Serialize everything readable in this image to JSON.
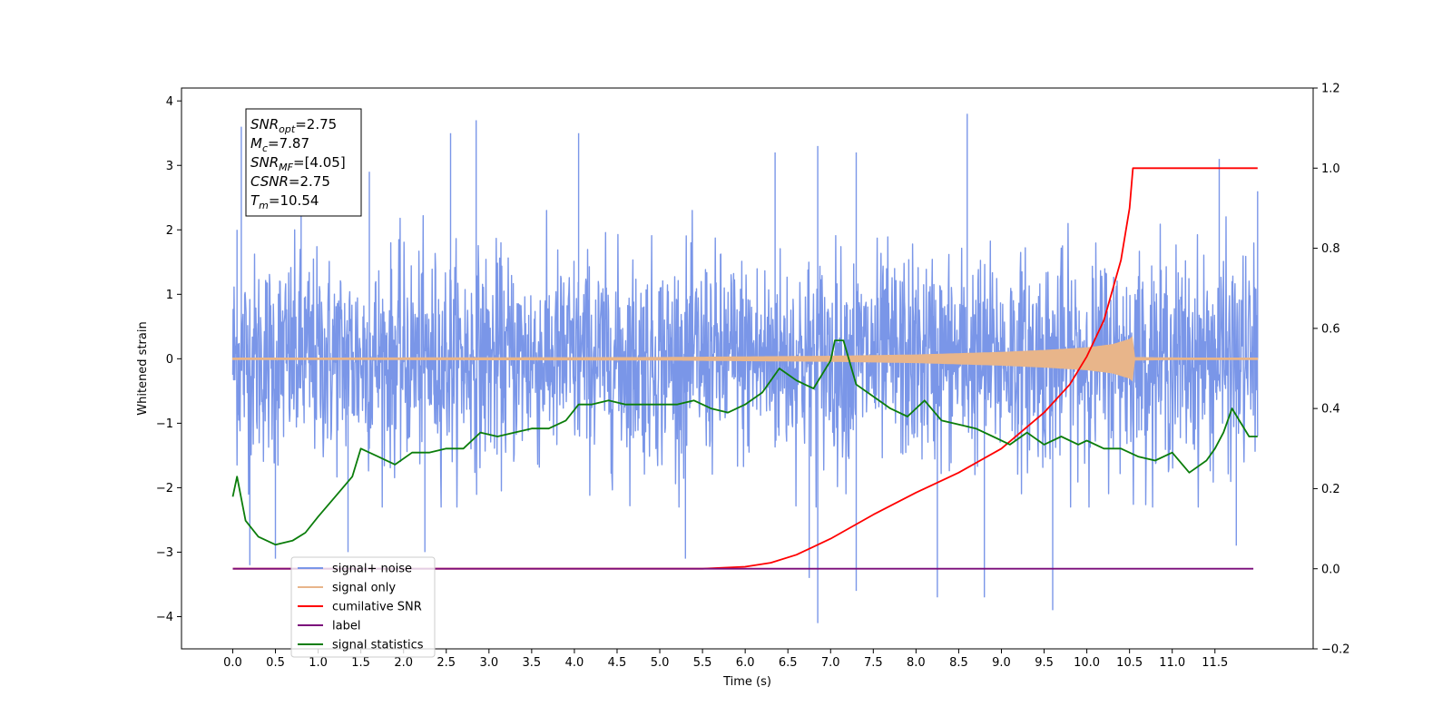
{
  "chart_data": {
    "type": "line",
    "xlabel": "Time (s)",
    "ylabel": "Whitened strain",
    "xlim": [
      -0.6,
      12.65
    ],
    "ylim": [
      -4.5,
      4.2
    ],
    "y2lim": [
      -0.2,
      1.2
    ],
    "x_ticks": [
      "0.0",
      "0.5",
      "1.0",
      "1.5",
      "2.0",
      "2.5",
      "3.0",
      "3.5",
      "4.0",
      "4.5",
      "5.0",
      "5.5",
      "6.0",
      "6.5",
      "7.0",
      "7.5",
      "8.0",
      "8.5",
      "9.0",
      "9.5",
      "10.0",
      "10.5",
      "11.0",
      "11.5"
    ],
    "y_ticks": [
      "4",
      "3",
      "2",
      "1",
      "0",
      "−1",
      "−2",
      "−3",
      "−4"
    ],
    "y2_ticks": [
      "1.2",
      "1.0",
      "0.8",
      "0.6",
      "0.4",
      "0.2",
      "0.0",
      "−0.2"
    ],
    "grid": false,
    "legend_position": "lower-left",
    "annotation": [
      {
        "base": "SNR",
        "sub": "opt",
        "value": "=2.75"
      },
      {
        "base": "M",
        "sub": "c",
        "value": "=7.87"
      },
      {
        "base": "SNR",
        "sub": "MF",
        "value": "=[4.05]"
      },
      {
        "base": "CSNR",
        "sub": "",
        "value": "=2.75"
      },
      {
        "base": "T",
        "sub": "m",
        "value": "=10.54"
      }
    ],
    "series": [
      {
        "name": "signal+ noise",
        "color": "#7a96e8",
        "axis": "left",
        "x_range": [
          0.0,
          12.0
        ],
        "band": [
          -1.3,
          1.3
        ],
        "spike_peaks": [
          [
            0.05,
            2.0
          ],
          [
            0.1,
            3.6
          ],
          [
            0.8,
            3.2
          ],
          [
            1.6,
            2.9
          ],
          [
            2.55,
            3.5
          ],
          [
            2.85,
            3.7
          ],
          [
            4.05,
            3.5
          ],
          [
            6.35,
            3.2
          ],
          [
            6.85,
            3.3
          ],
          [
            7.3,
            3.2
          ],
          [
            8.6,
            3.8
          ],
          [
            11.55,
            3.1
          ],
          [
            12.0,
            2.6
          ]
        ],
        "spike_troughs": [
          [
            0.2,
            -3.2
          ],
          [
            0.5,
            -3.1
          ],
          [
            1.35,
            -3.0
          ],
          [
            2.25,
            -3.0
          ],
          [
            5.3,
            -3.1
          ],
          [
            6.75,
            -3.4
          ],
          [
            6.85,
            -4.1
          ],
          [
            7.3,
            -3.6
          ],
          [
            8.25,
            -3.7
          ],
          [
            8.8,
            -3.7
          ],
          [
            9.6,
            -3.9
          ],
          [
            11.75,
            -2.9
          ]
        ]
      },
      {
        "name": "signal only",
        "color": "#e8b58a",
        "axis": "left",
        "envelope": {
          "x": [
            0.0,
            5.0,
            7.0,
            8.0,
            9.0,
            9.5,
            10.0,
            10.3,
            10.5,
            10.54,
            10.56,
            12.0
          ],
          "amp": [
            0.01,
            0.02,
            0.04,
            0.06,
            0.1,
            0.13,
            0.17,
            0.22,
            0.3,
            0.35,
            0.02,
            0.0
          ]
        }
      },
      {
        "name": "cumilative SNR",
        "color": "#ff0000",
        "axis": "right",
        "x": [
          0.0,
          5.5,
          6.0,
          6.3,
          6.6,
          7.0,
          7.5,
          8.0,
          8.5,
          9.0,
          9.5,
          9.8,
          10.0,
          10.2,
          10.4,
          10.5,
          10.54,
          12.0
        ],
        "y": [
          0.0,
          0.0,
          0.005,
          0.015,
          0.035,
          0.075,
          0.135,
          0.19,
          0.24,
          0.3,
          0.39,
          0.46,
          0.53,
          0.62,
          0.77,
          0.9,
          1.0,
          1.0
        ]
      },
      {
        "name": "label",
        "color": "#7b0d7b",
        "axis": "right",
        "x": [
          0.0,
          11.95
        ],
        "y": [
          0.0,
          0.0
        ]
      },
      {
        "name": "signal statistics",
        "color": "#0b7d0b",
        "axis": "right",
        "x": [
          0.0,
          0.05,
          0.15,
          0.3,
          0.5,
          0.7,
          0.85,
          1.0,
          1.2,
          1.4,
          1.5,
          1.7,
          1.9,
          2.1,
          2.3,
          2.5,
          2.7,
          2.9,
          3.1,
          3.3,
          3.5,
          3.7,
          3.9,
          4.05,
          4.2,
          4.4,
          4.6,
          4.8,
          5.0,
          5.2,
          5.4,
          5.6,
          5.8,
          6.0,
          6.2,
          6.4,
          6.6,
          6.8,
          7.0,
          7.05,
          7.15,
          7.3,
          7.5,
          7.7,
          7.9,
          8.0,
          8.1,
          8.3,
          8.5,
          8.7,
          8.9,
          9.1,
          9.3,
          9.5,
          9.7,
          9.9,
          10.0,
          10.2,
          10.4,
          10.6,
          10.8,
          11.0,
          11.2,
          11.4,
          11.5,
          11.6,
          11.7,
          11.9,
          12.0
        ],
        "y": [
          0.18,
          0.23,
          0.12,
          0.08,
          0.06,
          0.07,
          0.09,
          0.13,
          0.18,
          0.23,
          0.3,
          0.28,
          0.26,
          0.29,
          0.29,
          0.3,
          0.3,
          0.34,
          0.33,
          0.34,
          0.35,
          0.35,
          0.37,
          0.41,
          0.41,
          0.42,
          0.41,
          0.41,
          0.41,
          0.41,
          0.42,
          0.4,
          0.39,
          0.41,
          0.44,
          0.5,
          0.47,
          0.45,
          0.52,
          0.57,
          0.57,
          0.46,
          0.43,
          0.4,
          0.38,
          0.4,
          0.42,
          0.37,
          0.36,
          0.35,
          0.33,
          0.31,
          0.34,
          0.31,
          0.33,
          0.31,
          0.32,
          0.3,
          0.3,
          0.28,
          0.27,
          0.29,
          0.24,
          0.27,
          0.3,
          0.34,
          0.4,
          0.33,
          0.33
        ]
      }
    ]
  }
}
